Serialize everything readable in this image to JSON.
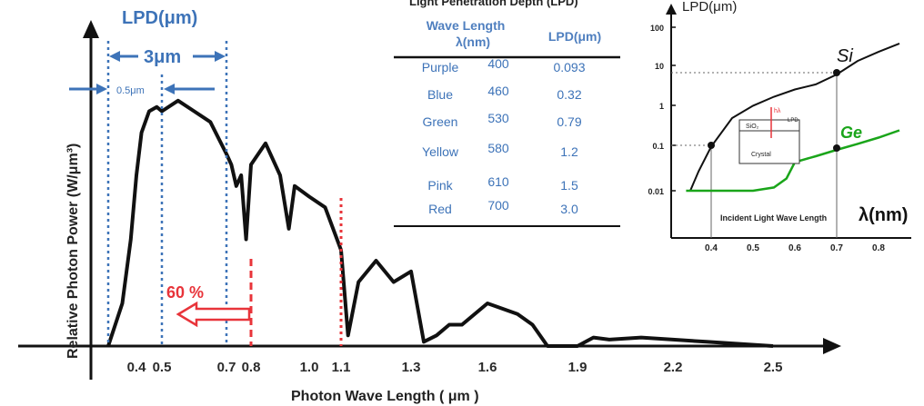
{
  "colors": {
    "curve": "#111111",
    "blue": "#3d73b8",
    "red": "#e8343a",
    "si": "#111111",
    "ge": "#1aa51a"
  },
  "main": {
    "ylabel": "Relative Photon Power  (W/μm³)",
    "xlabel": "Photon Wave Length ( μm )",
    "lpd_label": "LPD(μm)",
    "width_3um": "3μm",
    "width_05um": "0.5μm",
    "percent": "60 %",
    "ticks": [
      {
        "label": "0.4",
        "color": "dark"
      },
      {
        "label": "0.5",
        "color": "blue"
      },
      {
        "label": "0.7",
        "color": "dark"
      },
      {
        "label": "0.8",
        "color": "red"
      },
      {
        "label": "1.0",
        "color": "dark"
      },
      {
        "label": "1.1",
        "color": "red"
      },
      {
        "label": "1.3",
        "color": "dark"
      },
      {
        "label": "1.6",
        "color": "dark"
      },
      {
        "label": "1.9",
        "color": "dark"
      },
      {
        "label": "2.2",
        "color": "dark"
      },
      {
        "label": "2.5",
        "color": "dark"
      }
    ]
  },
  "table": {
    "title": "Light Penetration Depth (LPD)",
    "headers": [
      "Wave Length",
      "λ(nm)",
      "LPD(μm)"
    ],
    "rows": [
      {
        "color": "Purple",
        "wl": "400",
        "lpd": "0.093"
      },
      {
        "color": "Blue",
        "wl": "460",
        "lpd": "0.32"
      },
      {
        "color": "Green",
        "wl": "530",
        "lpd": "0.79"
      },
      {
        "color": "Yellow",
        "wl": "580",
        "lpd": "1.2"
      },
      {
        "color": "Pink",
        "wl": "610",
        "lpd": "1.5"
      },
      {
        "color": "Red",
        "wl": "700",
        "lpd": "3.0"
      }
    ]
  },
  "inset": {
    "ylabel": "LPD(μm)",
    "yticks": [
      "100",
      "10",
      "1",
      "0.1",
      "0.01"
    ],
    "xticks": [
      "0.4",
      "0.5",
      "0.6",
      "0.7",
      "0.8"
    ],
    "si": "Si",
    "ge": "Ge",
    "xlabel": "λ(nm)",
    "caption": "Incident Light Wave Length",
    "diagram_sio2": "SiO₂",
    "diagram_crystal": "Crystal",
    "diagram_hv": "hλ",
    "diagram_lpd": "LPD"
  },
  "chart_data": [
    {
      "type": "line",
      "title": "",
      "xlabel": "Photon Wave Length ( μm )",
      "ylabel": "Relative Photon Power  (W/μm³)",
      "x_ticks": [
        0.4,
        0.5,
        0.7,
        0.8,
        1.0,
        1.1,
        1.3,
        1.6,
        1.9,
        2.2,
        2.5
      ],
      "series": [
        {
          "x": [
            0.3,
            0.35,
            0.38,
            0.4,
            0.42,
            0.45,
            0.48,
            0.5,
            0.55,
            0.6,
            0.65,
            0.7,
            0.72,
            0.74,
            0.76,
            0.78,
            0.8,
            0.85,
            0.9,
            0.93,
            0.95,
            1.0,
            1.05,
            1.1,
            1.12,
            1.15,
            1.2,
            1.25,
            1.3,
            1.35,
            1.4,
            1.45,
            1.5,
            1.6,
            1.7,
            1.75,
            1.8,
            1.9,
            1.95,
            2.0,
            2.1,
            2.2,
            2.3,
            2.4,
            2.5
          ],
          "y": [
            0,
            0.2,
            0.5,
            0.8,
            1.0,
            1.1,
            1.12,
            1.1,
            1.15,
            1.1,
            1.05,
            0.9,
            0.85,
            0.75,
            0.8,
            0.5,
            0.85,
            0.95,
            0.8,
            0.55,
            0.75,
            0.7,
            0.65,
            0.45,
            0.05,
            0.3,
            0.4,
            0.3,
            0.35,
            0.02,
            0.05,
            0.1,
            0.1,
            0.2,
            0.15,
            0.1,
            0.0,
            0.0,
            0.04,
            0.03,
            0.04,
            0.03,
            0.02,
            0.01,
            0.0
          ]
        }
      ],
      "annotations": [
        {
          "text": "LPD(μm)"
        },
        {
          "text": "3μm"
        },
        {
          "text": "0.5μm"
        },
        {
          "text": "60 %"
        }
      ]
    },
    {
      "type": "line",
      "title": "",
      "xlabel": "λ(nm)",
      "ylabel": "LPD(μm)",
      "yscale": "log",
      "ylim": [
        0.01,
        100
      ],
      "xlim": [
        0.3,
        0.8
      ],
      "series": [
        {
          "name": "Si",
          "x": [
            0.35,
            0.37,
            0.4,
            0.45,
            0.5,
            0.55,
            0.6,
            0.65,
            0.7,
            0.75,
            0.8,
            0.85
          ],
          "y": [
            0.01,
            0.03,
            0.12,
            0.6,
            1.2,
            2,
            3,
            4,
            7,
            15,
            25,
            40
          ]
        },
        {
          "name": "Ge",
          "x": [
            0.34,
            0.4,
            0.5,
            0.55,
            0.58,
            0.6,
            0.65,
            0.7,
            0.75,
            0.8,
            0.85
          ],
          "y": [
            0.01,
            0.01,
            0.01,
            0.012,
            0.02,
            0.05,
            0.07,
            0.1,
            0.14,
            0.2,
            0.3
          ]
        }
      ]
    }
  ]
}
